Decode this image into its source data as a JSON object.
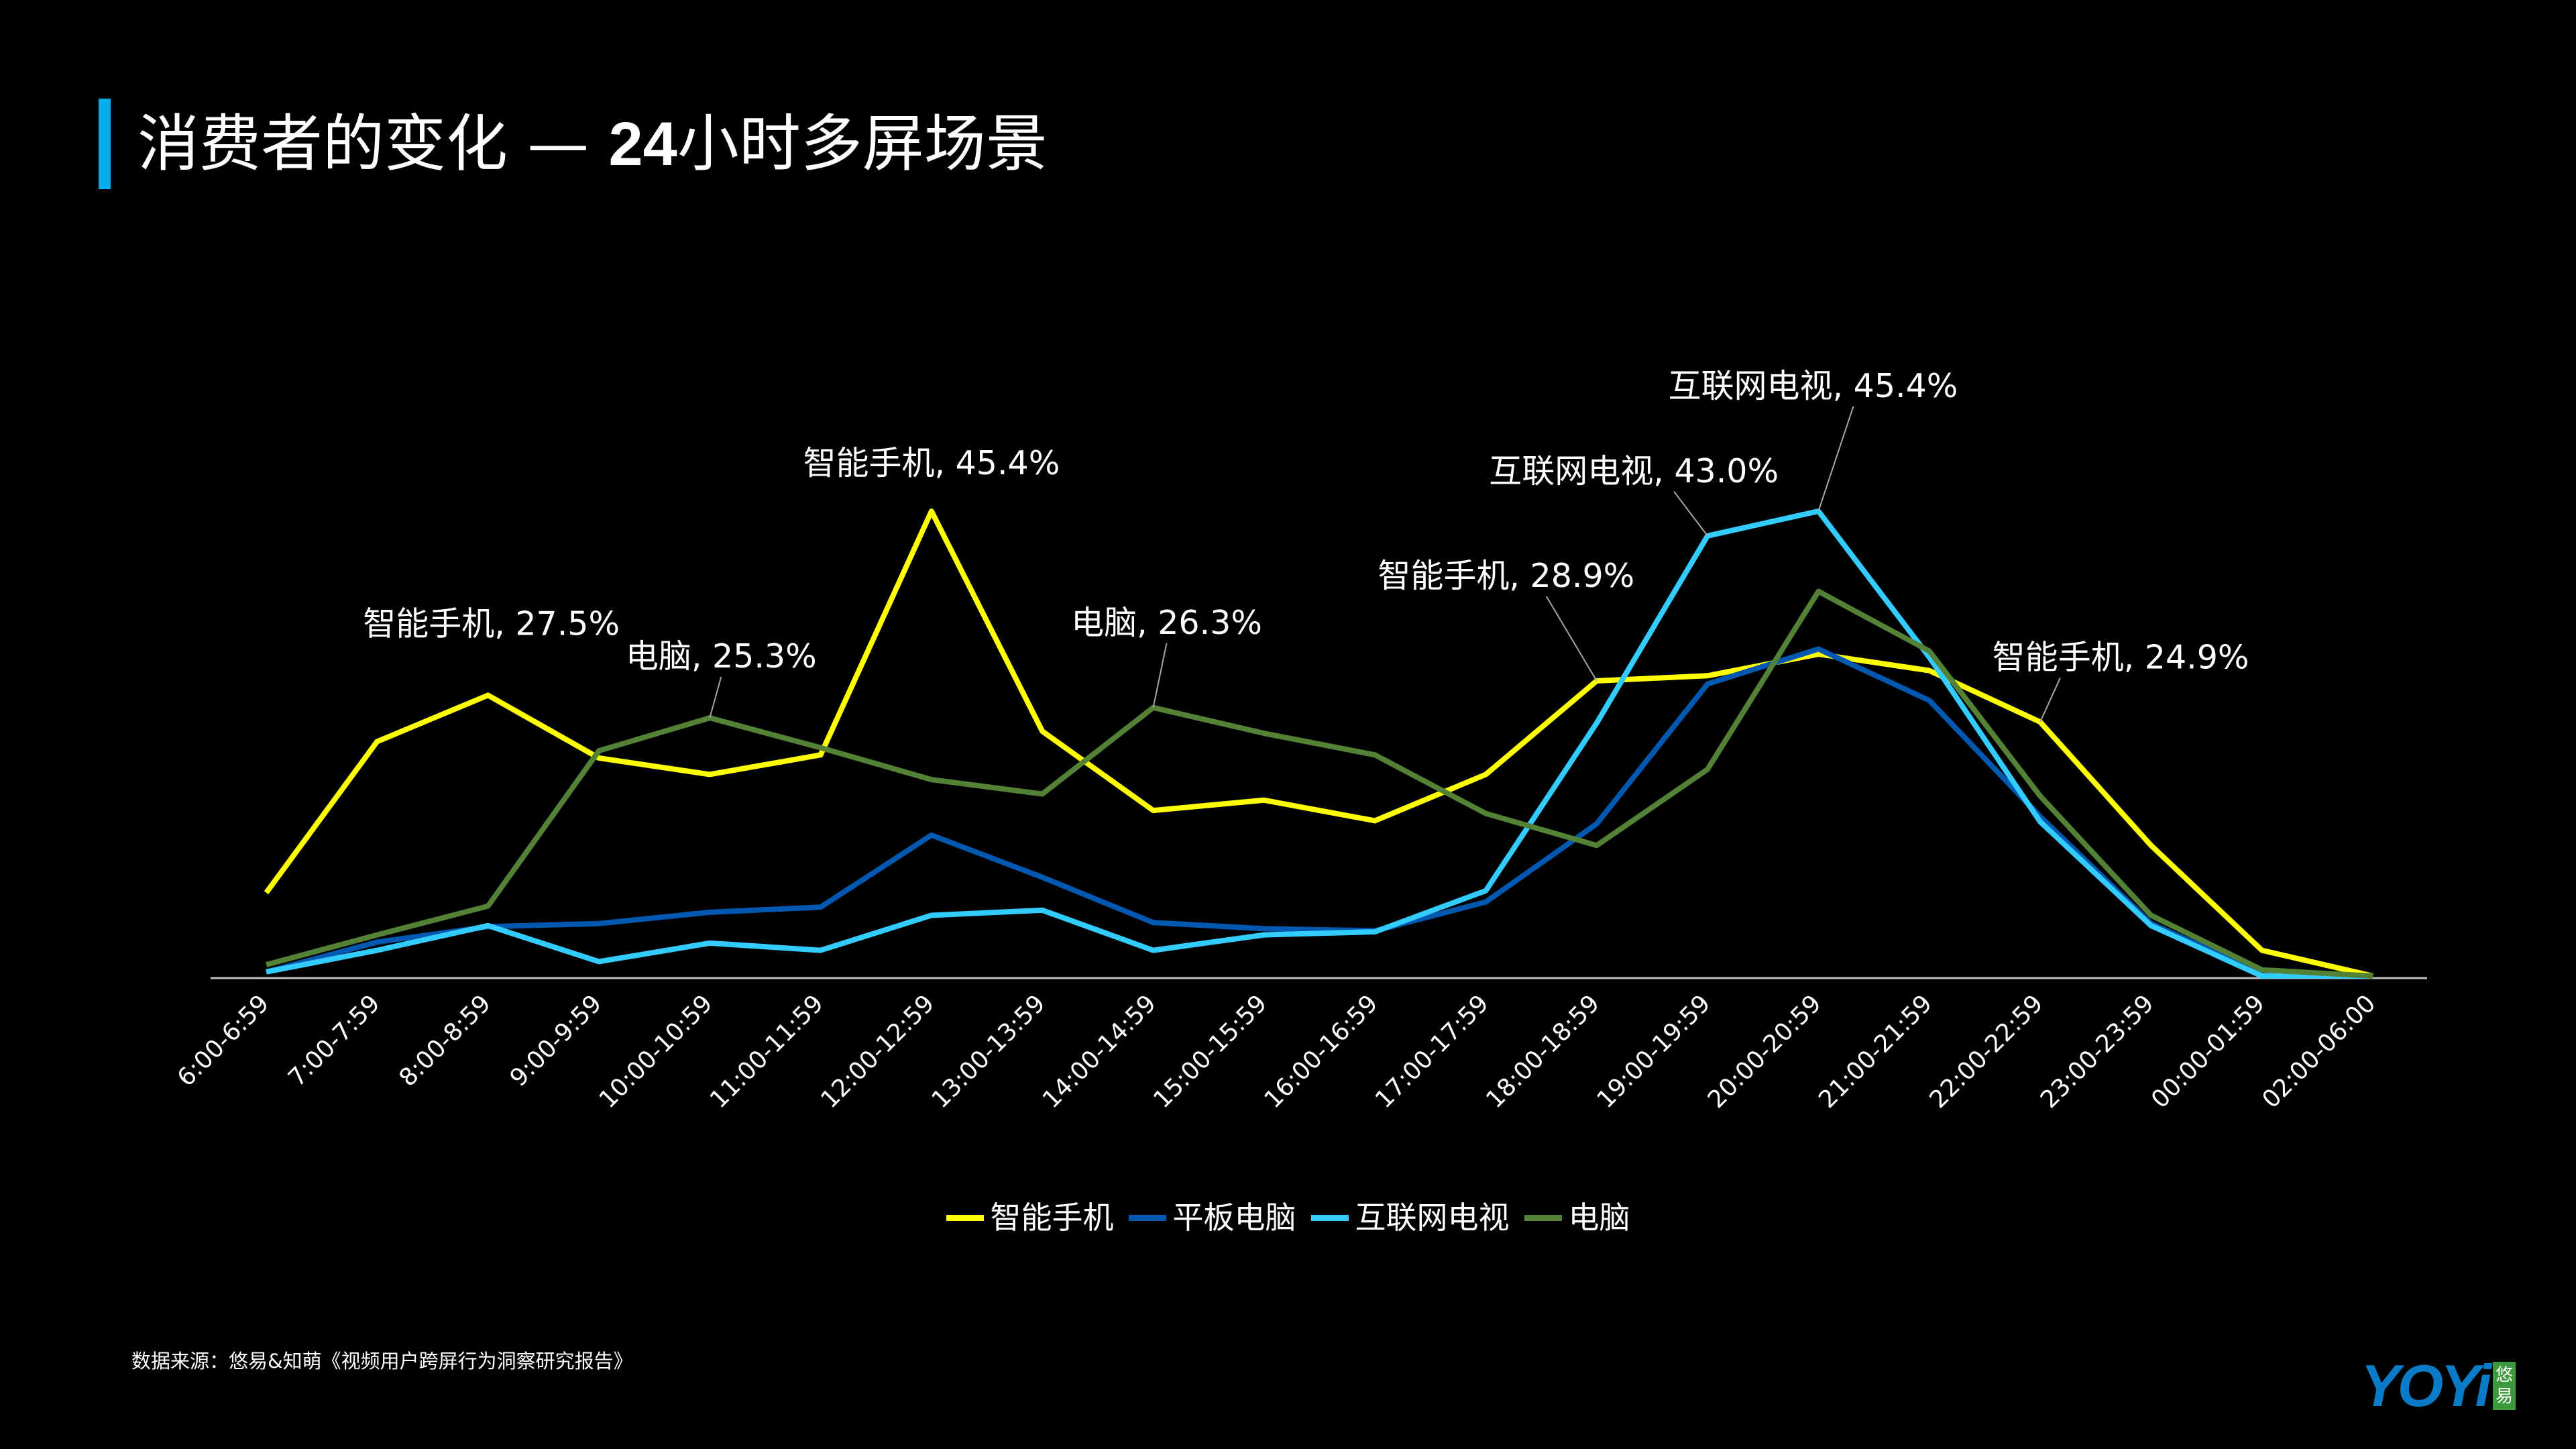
{
  "title": {
    "main": "消费者的变化 — ",
    "bold": "24",
    "rest": "小时多屏场景"
  },
  "chart_data": {
    "type": "line",
    "categories": [
      "6:00-6:59",
      "7:00-7:59",
      "8:00-8:59",
      "9:00-9:59",
      "10:00-10:59",
      "11:00-11:59",
      "12:00-12:59",
      "13:00-13:59",
      "14:00-14:59",
      "15:00-15:59",
      "16:00-16:59",
      "17:00-17:59",
      "18:00-18:59",
      "19:00-19:59",
      "20:00-20:59",
      "21:00-21:59",
      "22:00-22:59",
      "23:00-23:59",
      "00:00-01:59",
      "02:00-06:00"
    ],
    "ylim": [
      0,
      50
    ],
    "grid": false,
    "legend_position": "bottom",
    "series": [
      {
        "name": "智能手机",
        "color": "#FFFF00",
        "values": [
          8.3,
          23.0,
          27.5,
          21.4,
          19.8,
          21.7,
          45.4,
          24.0,
          16.3,
          17.3,
          15.3,
          19.8,
          28.9,
          29.4,
          31.5,
          29.9,
          24.9,
          12.9,
          2.7,
          0.2
        ]
      },
      {
        "name": "平板电脑",
        "color": "#0058B0",
        "values": [
          0.6,
          3.5,
          5.0,
          5.3,
          6.4,
          6.9,
          13.9,
          9.8,
          5.4,
          4.8,
          4.6,
          7.4,
          15.0,
          28.6,
          32.0,
          27.0,
          15.7,
          5.3,
          0.5,
          0.2
        ]
      },
      {
        "name": "互联网电视",
        "color": "#33CCFF",
        "values": [
          0.6,
          2.7,
          5.1,
          1.6,
          3.4,
          2.7,
          6.1,
          6.6,
          2.7,
          4.2,
          4.5,
          8.5,
          24.8,
          43.0,
          45.4,
          31.2,
          15.2,
          5.1,
          0.2,
          0.2
        ]
      },
      {
        "name": "电脑",
        "color": "#538135",
        "values": [
          1.3,
          4.2,
          7.0,
          22.1,
          25.3,
          22.4,
          19.3,
          17.9,
          26.3,
          23.8,
          21.7,
          16.0,
          12.9,
          20.3,
          37.6,
          31.8,
          17.7,
          6.1,
          0.8,
          0.2
        ]
      }
    ],
    "annotations": [
      {
        "series": 0,
        "index": 2,
        "text": "智能手机, 27.5%"
      },
      {
        "series": 3,
        "index": 4,
        "text": "电脑, 25.3%"
      },
      {
        "series": 0,
        "index": 6,
        "text": "智能手机, 45.4%"
      },
      {
        "series": 3,
        "index": 8,
        "text": "电脑, 26.3%"
      },
      {
        "series": 0,
        "index": 12,
        "text": "智能手机, 28.9%"
      },
      {
        "series": 2,
        "index": 13,
        "text": "互联网电视, 43.0%"
      },
      {
        "series": 2,
        "index": 14,
        "text": "互联网电视, 45.4%"
      },
      {
        "series": 0,
        "index": 16,
        "text": "智能手机, 24.9%"
      }
    ]
  },
  "source": "数据来源：悠易&知萌《视频用户跨屏行为洞察研究报告》",
  "logo": {
    "text": "YOYi",
    "badge": "悠易"
  }
}
